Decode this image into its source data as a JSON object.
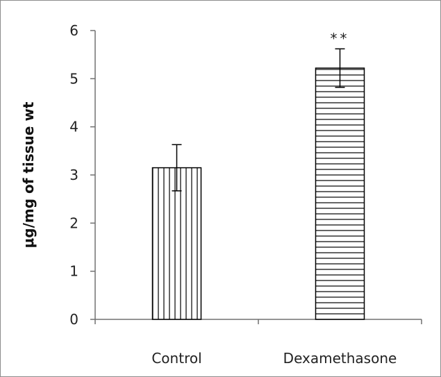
{
  "chart_data": {
    "type": "bar",
    "title": "",
    "xlabel": "",
    "ylabel": "μg/mg of tissue wt",
    "categories": [
      "Control",
      "Dexamethasone"
    ],
    "values": [
      3.15,
      5.22
    ],
    "errors": [
      0.48,
      0.4
    ],
    "patterns": [
      "vertical-lines",
      "horizontal-lines"
    ],
    "annotations": [
      "",
      "**"
    ],
    "ylim": [
      0,
      6
    ],
    "yticks": [
      0,
      1,
      2,
      3,
      4,
      5,
      6
    ],
    "grid": false,
    "legend": "none"
  }
}
